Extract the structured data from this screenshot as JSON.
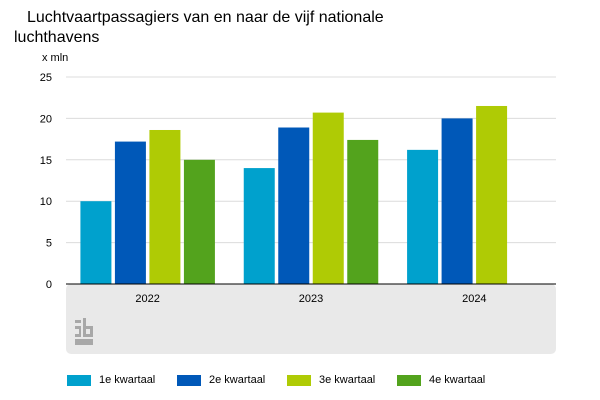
{
  "title_line1": "Luchtvaartpassagiers van en naar de vijf nationale",
  "title_line2": "luchthavens",
  "chart_data": {
    "type": "bar",
    "title": "Luchtvaartpassagiers van en naar de vijf nationale luchthavens",
    "ylabel": "x mln",
    "xlabel": "",
    "ylim": [
      0,
      25
    ],
    "yticks": [
      0,
      5,
      10,
      15,
      20,
      25
    ],
    "categories": [
      "2022",
      "2023",
      "2024"
    ],
    "series": [
      {
        "name": "1e kwartaal",
        "color": "#00a1cd",
        "values": [
          10.0,
          14.0,
          16.2
        ]
      },
      {
        "name": "2e kwartaal",
        "color": "#0058b8",
        "values": [
          17.2,
          18.9,
          20.0
        ]
      },
      {
        "name": "3e kwartaal",
        "color": "#afcb05",
        "values": [
          18.6,
          20.7,
          21.5
        ]
      },
      {
        "name": "4e kwartaal",
        "color": "#53a31d",
        "values": [
          15.0,
          17.4,
          null
        ]
      }
    ],
    "legend_position": "bottom",
    "grid": true
  },
  "logo_text": "cbs"
}
